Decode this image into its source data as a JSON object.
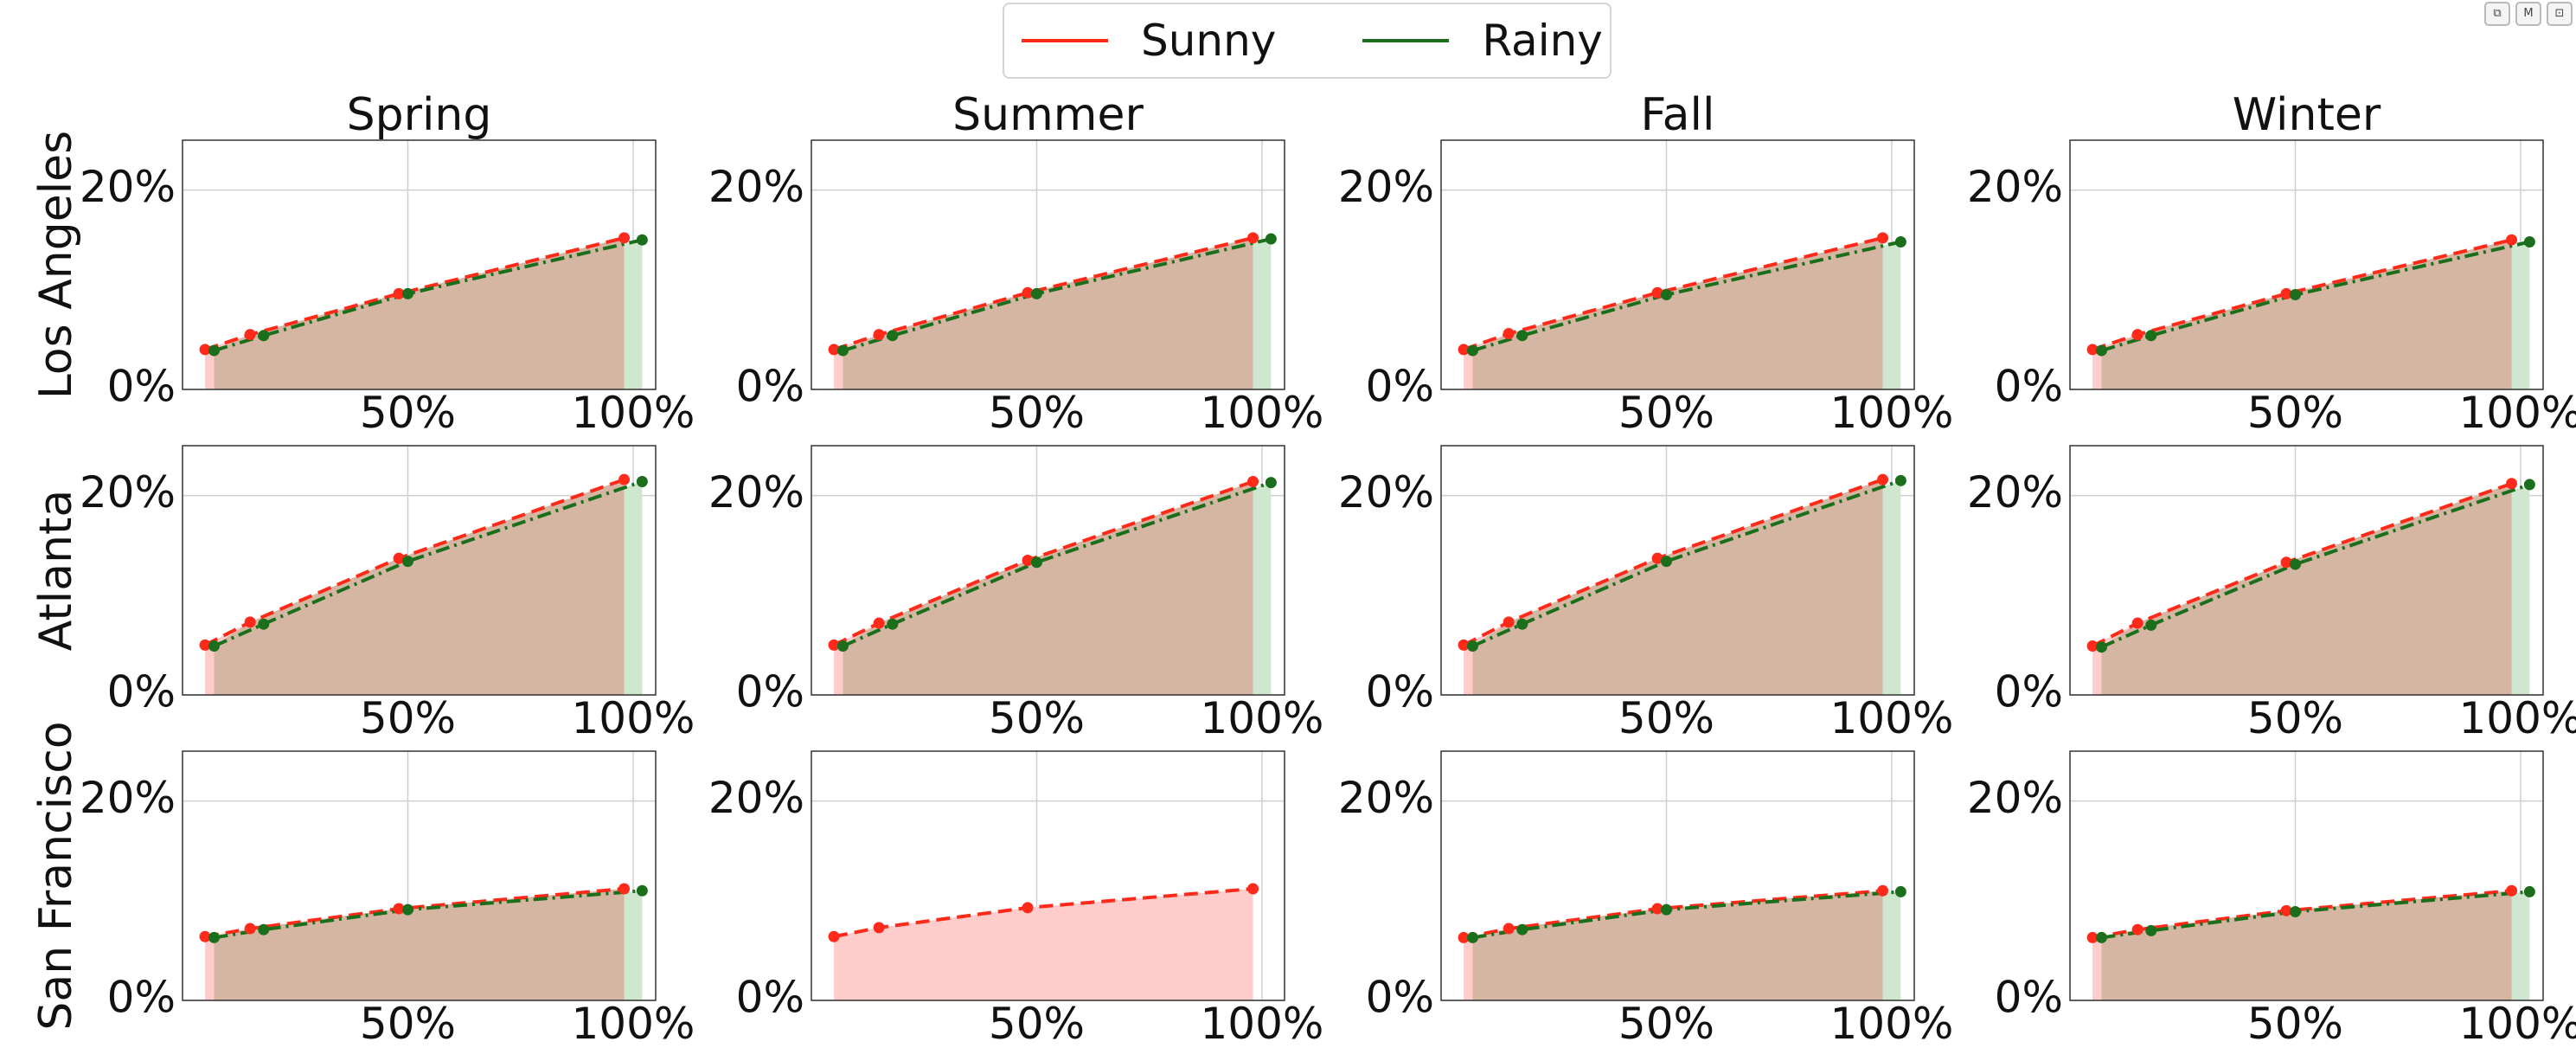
{
  "legend": {
    "sunny": "Sunny",
    "rainy": "Rainy"
  },
  "colors": {
    "sunny": "#ff2a1a",
    "rainy": "#1b6e1b",
    "sunny_fill": "#ffcccc",
    "rainy_fill": "#cfe6cf",
    "overlap_fill": "#d4b6a3"
  },
  "toolbar": {
    "copy_icon": "copy-icon",
    "markdown_icon": "markdown-icon",
    "expand_icon": "expand-icon"
  },
  "chart_data": {
    "type": "area",
    "seasons": [
      "Spring",
      "Summer",
      "Fall",
      "Winter"
    ],
    "cities": [
      "Los Angeles",
      "Atlanta",
      "San Francisco"
    ],
    "x_ticks": [
      50,
      100
    ],
    "x_tick_labels": [
      "50%",
      "100%"
    ],
    "y_ticks": [
      0,
      20
    ],
    "y_tick_labels": [
      "0%",
      "20%"
    ],
    "xlim": [
      0,
      105
    ],
    "ylim": [
      0,
      25
    ],
    "grid": true,
    "legend_position": "top-center",
    "series": [
      {
        "name": "Sunny",
        "style": "dashed-area",
        "x": [
          5,
          15,
          48,
          98
        ]
      },
      {
        "name": "Rainy",
        "style": "dashdot-area",
        "x": [
          7,
          18,
          50,
          102
        ]
      }
    ],
    "panels": [
      {
        "city": "Los Angeles",
        "season": "Spring",
        "sunny": [
          4.0,
          5.5,
          9.6,
          15.2
        ],
        "rainy": [
          3.9,
          5.4,
          9.6,
          15.0
        ]
      },
      {
        "city": "Los Angeles",
        "season": "Summer",
        "sunny": [
          4.0,
          5.5,
          9.7,
          15.2
        ],
        "rainy": [
          3.9,
          5.4,
          9.6,
          15.1
        ]
      },
      {
        "city": "Los Angeles",
        "season": "Fall",
        "sunny": [
          4.0,
          5.6,
          9.7,
          15.2
        ],
        "rainy": [
          3.9,
          5.4,
          9.5,
          14.8
        ]
      },
      {
        "city": "Los Angeles",
        "season": "Winter",
        "sunny": [
          4.0,
          5.5,
          9.6,
          15.0
        ],
        "rainy": [
          3.9,
          5.4,
          9.5,
          14.8
        ]
      },
      {
        "city": "Atlanta",
        "season": "Spring",
        "sunny": [
          5.0,
          7.3,
          13.7,
          21.6
        ],
        "rainy": [
          4.9,
          7.1,
          13.4,
          21.4
        ]
      },
      {
        "city": "Atlanta",
        "season": "Summer",
        "sunny": [
          5.0,
          7.2,
          13.5,
          21.4
        ],
        "rainy": [
          4.9,
          7.1,
          13.3,
          21.3
        ]
      },
      {
        "city": "Atlanta",
        "season": "Fall",
        "sunny": [
          5.0,
          7.3,
          13.7,
          21.6
        ],
        "rainy": [
          4.9,
          7.1,
          13.4,
          21.5
        ]
      },
      {
        "city": "Atlanta",
        "season": "Winter",
        "sunny": [
          4.9,
          7.2,
          13.3,
          21.2
        ],
        "rainy": [
          4.8,
          7.0,
          13.1,
          21.1
        ]
      },
      {
        "city": "San Francisco",
        "season": "Spring",
        "sunny": [
          6.4,
          7.2,
          9.2,
          11.2
        ],
        "rainy": [
          6.3,
          7.1,
          9.1,
          11.0
        ]
      },
      {
        "city": "San Francisco",
        "season": "Summer",
        "sunny": [
          6.4,
          7.3,
          9.3,
          11.2
        ],
        "rainy": null
      },
      {
        "city": "San Francisco",
        "season": "Fall",
        "sunny": [
          6.3,
          7.2,
          9.2,
          11.0
        ],
        "rainy": [
          6.3,
          7.1,
          9.1,
          10.9
        ]
      },
      {
        "city": "San Francisco",
        "season": "Winter",
        "sunny": [
          6.3,
          7.1,
          9.0,
          11.0
        ],
        "rainy": [
          6.3,
          7.0,
          8.9,
          10.9
        ]
      }
    ]
  }
}
